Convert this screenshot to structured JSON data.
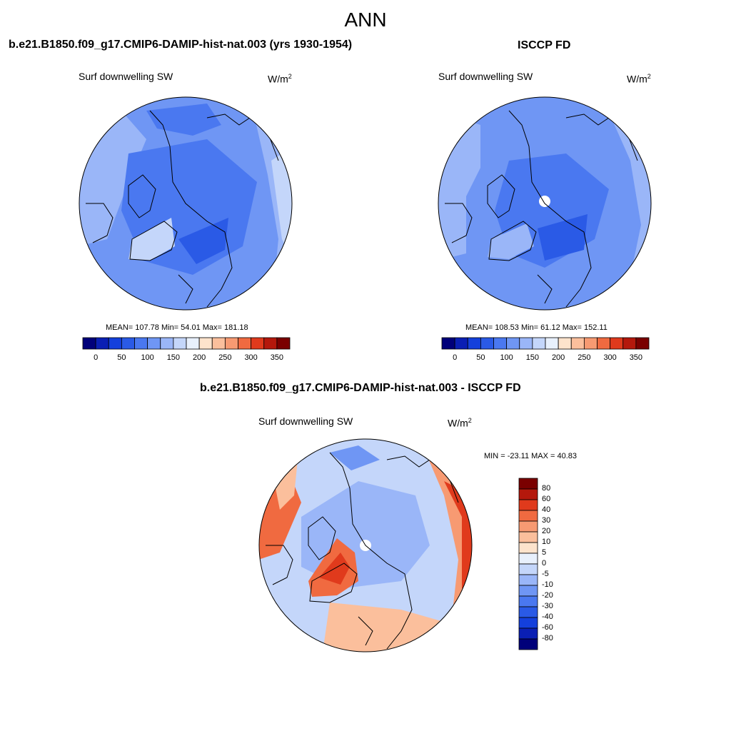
{
  "title": "ANN",
  "colors": {
    "abs_palette": [
      "#00007a",
      "#0a1fb4",
      "#1440dc",
      "#2a5ae6",
      "#4a78f0",
      "#6f96f4",
      "#9ab6f8",
      "#c4d6fa",
      "#e8f0fc",
      "#fde3cc",
      "#fbbf9c",
      "#f79a72",
      "#f06a40",
      "#e03a1c",
      "#b4180c",
      "#7a0000"
    ],
    "diff_palette": [
      "#00007a",
      "#0a1fb4",
      "#1440dc",
      "#2a5ae6",
      "#4a78f0",
      "#6f96f4",
      "#9ab6f8",
      "#c4d6fa",
      "#e8f0fc",
      "#fde3cc",
      "#fbbf9c",
      "#f79a72",
      "#f06a40",
      "#e03a1c",
      "#b4180c",
      "#7a0000"
    ],
    "coastline": "#000000"
  },
  "panels": {
    "model": {
      "title": "b.e21.B1850.f09_g17.CMIP6-DAMIP-hist-nat.003 (yrs 1930-1954)",
      "variable": "Surf downwelling SW",
      "units_base": "W/m",
      "units_exp": "2",
      "stats": "MEAN= 107.78  Min=  54.01  Max= 181.18",
      "colorbar_ticks": [
        "0",
        "50",
        "100",
        "150",
        "200",
        "250",
        "300",
        "350"
      ]
    },
    "obs": {
      "title": "ISCCP FD",
      "variable": "Surf downwelling SW",
      "units_base": "W/m",
      "units_exp": "2",
      "stats": "MEAN= 108.53  Min=  61.12  Max= 152.11",
      "colorbar_ticks": [
        "0",
        "50",
        "100",
        "150",
        "200",
        "250",
        "300",
        "350"
      ]
    },
    "diff": {
      "title": "b.e21.B1850.f09_g17.CMIP6-DAMIP-hist-nat.003 - ISCCP FD",
      "variable": "Surf downwelling SW",
      "units_base": "W/m",
      "units_exp": "2",
      "stats": "MIN = -23.11 MAX =  40.83",
      "colorbar_ticks": [
        "80",
        "60",
        "40",
        "30",
        "20",
        "10",
        "5",
        "0",
        "-5",
        "-10",
        "-20",
        "-30",
        "-40",
        "-60",
        "-80"
      ]
    }
  }
}
